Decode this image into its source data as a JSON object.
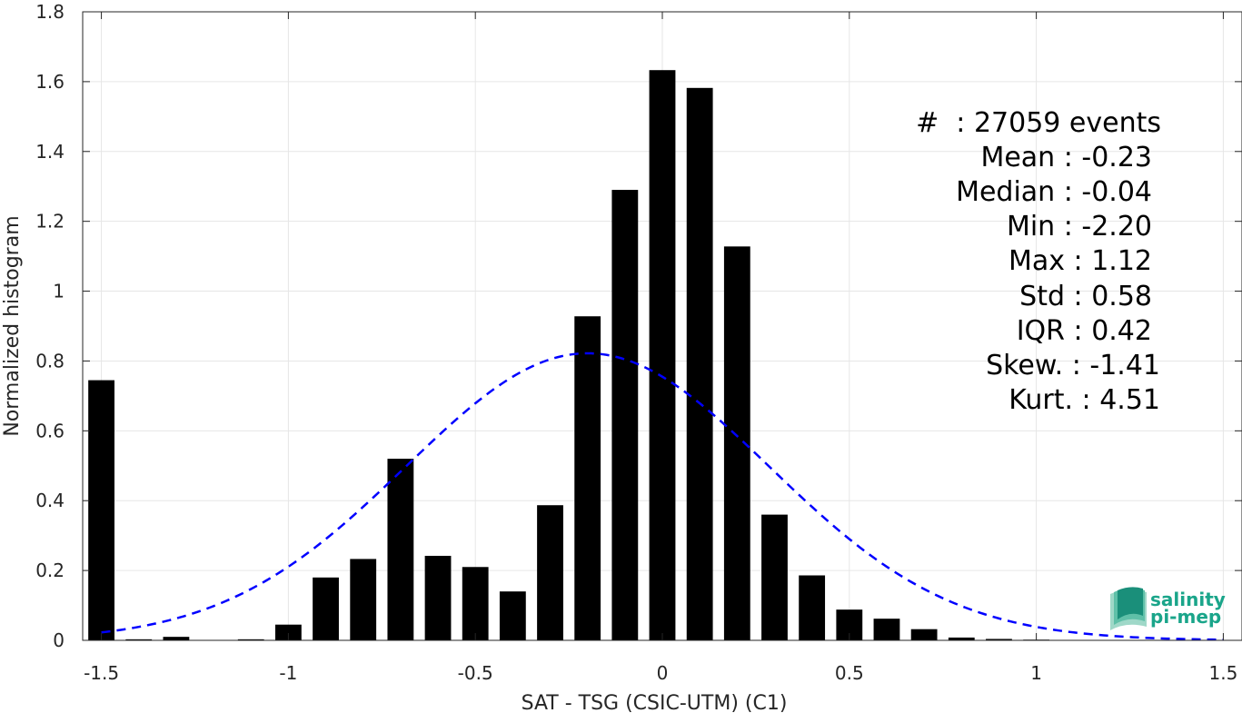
{
  "chart_data": {
    "type": "bar",
    "xlabel": "SAT - TSG (CSIC-UTM) (C1)",
    "ylabel": "Normalized histogram",
    "xlim": [
      -1.55,
      1.55
    ],
    "ylim": [
      0,
      1.8
    ],
    "xticks": [
      "-1.5",
      "-1",
      "-0.5",
      "0",
      "0.5",
      "1",
      "1.5"
    ],
    "yticks": [
      "0",
      "0.2",
      "0.4",
      "0.6",
      "0.8",
      "1",
      "1.2",
      "1.4",
      "1.6",
      "1.8"
    ],
    "grid": true,
    "bin_width": 0.1,
    "bars": [
      {
        "x": -1.5,
        "y": 0.745
      },
      {
        "x": -1.4,
        "y": 0.003
      },
      {
        "x": -1.3,
        "y": 0.01
      },
      {
        "x": -1.2,
        "y": 0.0
      },
      {
        "x": -1.1,
        "y": 0.003
      },
      {
        "x": -1.0,
        "y": 0.045
      },
      {
        "x": -0.9,
        "y": 0.18
      },
      {
        "x": -0.8,
        "y": 0.233
      },
      {
        "x": -0.7,
        "y": 0.52
      },
      {
        "x": -0.6,
        "y": 0.242
      },
      {
        "x": -0.5,
        "y": 0.21
      },
      {
        "x": -0.4,
        "y": 0.14
      },
      {
        "x": -0.3,
        "y": 0.387
      },
      {
        "x": -0.2,
        "y": 0.928
      },
      {
        "x": -0.1,
        "y": 1.29
      },
      {
        "x": 0.0,
        "y": 1.633
      },
      {
        "x": 0.1,
        "y": 1.582
      },
      {
        "x": 0.2,
        "y": 1.128
      },
      {
        "x": 0.3,
        "y": 0.36
      },
      {
        "x": 0.4,
        "y": 0.186
      },
      {
        "x": 0.5,
        "y": 0.088
      },
      {
        "x": 0.6,
        "y": 0.062
      },
      {
        "x": 0.7,
        "y": 0.032
      },
      {
        "x": 0.8,
        "y": 0.008
      },
      {
        "x": 0.9,
        "y": 0.004
      },
      {
        "x": 1.0,
        "y": 0.002
      },
      {
        "x": 1.1,
        "y": 0.001
      }
    ],
    "fit_curve": {
      "style": "dashed",
      "color": "#0000ff",
      "mean": -0.2,
      "std": 0.485,
      "x_range": [
        -1.5,
        1.5
      ],
      "peak": 0.822
    },
    "bar_color": "#000000"
  },
  "stats": {
    "lines": [
      "#  : 27059 events",
      "Mean : -0.23",
      "Median : -0.04",
      "Min : -2.20",
      "Max : 1.12",
      "Std : 0.58",
      "IQR : 0.42",
      "Skew. : -1.41",
      "Kurt. : 4.51"
    ]
  },
  "logo": {
    "line1": "salinity",
    "line2": "pi-mep",
    "colors": {
      "text": "#1aa58a",
      "mark_dark": "#1a8f7a",
      "mark_light": "#9fd8c8"
    }
  }
}
